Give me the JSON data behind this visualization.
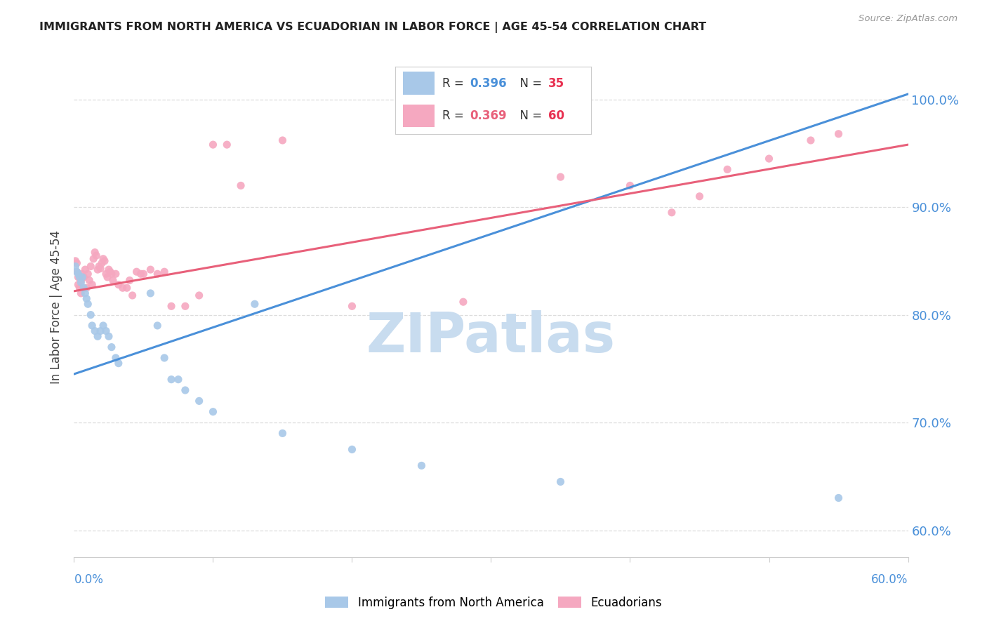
{
  "title": "IMMIGRANTS FROM NORTH AMERICA VS ECUADORIAN IN LABOR FORCE | AGE 45-54 CORRELATION CHART",
  "source": "Source: ZipAtlas.com",
  "ylabel": "In Labor Force | Age 45-54",
  "y_tick_labels": [
    "60.0%",
    "70.0%",
    "80.0%",
    "90.0%",
    "100.0%"
  ],
  "y_tick_values": [
    0.6,
    0.7,
    0.8,
    0.9,
    1.0
  ],
  "x_range": [
    0.0,
    0.6
  ],
  "y_range": [
    0.575,
    1.04
  ],
  "blue_R": 0.396,
  "blue_N": 35,
  "pink_R": 0.369,
  "pink_N": 60,
  "blue_color": "#A8C8E8",
  "pink_color": "#F5A8C0",
  "blue_trend_color": "#4A90D9",
  "pink_trend_color": "#E8607A",
  "blue_scatter_x": [
    0.001,
    0.002,
    0.003,
    0.004,
    0.005,
    0.006,
    0.007,
    0.008,
    0.009,
    0.01,
    0.012,
    0.013,
    0.015,
    0.017,
    0.019,
    0.021,
    0.023,
    0.025,
    0.027,
    0.03,
    0.032,
    0.055,
    0.06,
    0.065,
    0.07,
    0.075,
    0.13,
    0.08,
    0.09,
    0.1,
    0.15,
    0.2,
    0.25,
    0.35,
    0.55
  ],
  "blue_scatter_y": [
    0.845,
    0.84,
    0.838,
    0.835,
    0.83,
    0.835,
    0.825,
    0.82,
    0.815,
    0.81,
    0.8,
    0.79,
    0.785,
    0.78,
    0.785,
    0.79,
    0.785,
    0.78,
    0.77,
    0.76,
    0.755,
    0.82,
    0.79,
    0.76,
    0.74,
    0.74,
    0.81,
    0.73,
    0.72,
    0.71,
    0.69,
    0.675,
    0.66,
    0.645,
    0.63
  ],
  "pink_scatter_x": [
    0.001,
    0.002,
    0.002,
    0.003,
    0.003,
    0.004,
    0.005,
    0.005,
    0.006,
    0.007,
    0.008,
    0.009,
    0.01,
    0.011,
    0.012,
    0.013,
    0.014,
    0.015,
    0.016,
    0.017,
    0.018,
    0.019,
    0.02,
    0.021,
    0.022,
    0.023,
    0.024,
    0.025,
    0.026,
    0.027,
    0.028,
    0.03,
    0.032,
    0.035,
    0.038,
    0.04,
    0.042,
    0.045,
    0.048,
    0.05,
    0.055,
    0.06,
    0.065,
    0.07,
    0.1,
    0.12,
    0.15,
    0.2,
    0.28,
    0.35,
    0.4,
    0.43,
    0.45,
    0.47,
    0.5,
    0.53,
    0.55,
    0.08,
    0.09,
    0.11
  ],
  "pink_scatter_y": [
    0.85,
    0.848,
    0.84,
    0.835,
    0.828,
    0.825,
    0.82,
    0.832,
    0.838,
    0.835,
    0.842,
    0.825,
    0.838,
    0.832,
    0.845,
    0.828,
    0.852,
    0.858,
    0.855,
    0.842,
    0.845,
    0.843,
    0.848,
    0.852,
    0.85,
    0.838,
    0.835,
    0.842,
    0.84,
    0.838,
    0.832,
    0.838,
    0.828,
    0.825,
    0.825,
    0.832,
    0.818,
    0.84,
    0.838,
    0.838,
    0.842,
    0.838,
    0.84,
    0.808,
    0.958,
    0.92,
    0.962,
    0.808,
    0.812,
    0.928,
    0.92,
    0.895,
    0.91,
    0.935,
    0.945,
    0.962,
    0.968,
    0.808,
    0.818,
    0.958
  ],
  "watermark": "ZIPatlas",
  "watermark_color": "#C8DCEF",
  "background_color": "#FFFFFF"
}
